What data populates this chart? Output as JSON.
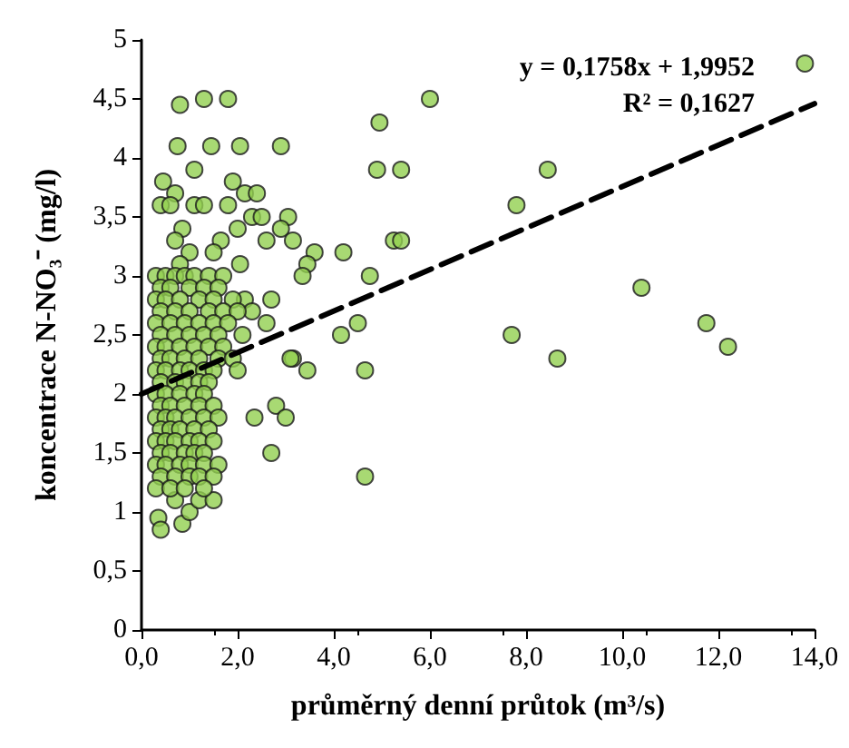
{
  "chart_data": {
    "type": "scatter",
    "xlabel": "průměrný denní průtok (m³/s)",
    "ylabel": "koncentrace N-NO₃⁻ (mg/l)",
    "annotations": [
      "y = 0,1758x + 1,9952",
      "R² = 0,1627"
    ],
    "xlim": [
      0,
      14
    ],
    "xticks": [
      {
        "value": 0,
        "label": "0,0"
      },
      {
        "value": 2,
        "label": "2,0"
      },
      {
        "value": 4,
        "label": "4,0"
      },
      {
        "value": 6,
        "label": "6,0"
      },
      {
        "value": 8,
        "label": "8,0"
      },
      {
        "value": 10,
        "label": "10,0"
      },
      {
        "value": 12,
        "label": "12,0"
      },
      {
        "value": 14,
        "label": "14,0"
      }
    ],
    "ylim": [
      0,
      5
    ],
    "yticks": [
      0,
      {
        "value": 0.5,
        "label": "0,5"
      },
      1,
      {
        "value": 1.5,
        "label": "1,5"
      },
      2,
      {
        "value": 2.5,
        "label": "2,5"
      },
      3,
      {
        "value": 3.5,
        "label": "3,5"
      },
      4,
      {
        "value": 4.5,
        "label": "4,5"
      },
      5
    ],
    "grid": false,
    "series": [
      {
        "color": "#92d050",
        "marker": "circle",
        "x": [
          13.8,
          6.0,
          4.95,
          4.9,
          5.4,
          8.45,
          7.8,
          5.25,
          5.4,
          4.75,
          10.4,
          11.75,
          12.2,
          7.7,
          8.65,
          4.65,
          4.65,
          0.8,
          1.3,
          1.8,
          0.75,
          1.45,
          2.05,
          2.9,
          1.1,
          0.45,
          1.9,
          0.7,
          2.15,
          2.4,
          0.4,
          0.6,
          1.1,
          1.3,
          1.8,
          2.3,
          2.5,
          3.05,
          0.85,
          2.0,
          2.9,
          0.7,
          1.65,
          2.6,
          3.15,
          1.0,
          1.5,
          3.6,
          4.2,
          0.8,
          2.05,
          3.45,
          3.35,
          2.7,
          2.15,
          2.3,
          2.6,
          4.15,
          4.5,
          3.15,
          3.1,
          3.45,
          2.8,
          3.0,
          2.35,
          2.7,
          0.35,
          0.4,
          0.85,
          1.0,
          0.7,
          1.2,
          1.5,
          0.3,
          0.5,
          0.7,
          0.9,
          1.1,
          1.4,
          1.7,
          0.4,
          0.6,
          1.0,
          1.3,
          1.6,
          0.3,
          0.5,
          0.8,
          1.2,
          1.5,
          1.9,
          0.4,
          0.7,
          1.0,
          1.4,
          1.7,
          2.0,
          0.3,
          0.6,
          0.9,
          1.2,
          1.5,
          1.8,
          0.4,
          0.7,
          1.0,
          1.3,
          1.6,
          2.1,
          0.3,
          0.5,
          0.8,
          1.1,
          1.4,
          1.7,
          0.4,
          0.6,
          0.9,
          1.2,
          1.6,
          1.9,
          0.3,
          0.5,
          0.8,
          1.0,
          1.3,
          1.5,
          2.0,
          0.4,
          0.7,
          0.9,
          1.2,
          1.4,
          0.3,
          0.5,
          0.8,
          1.1,
          1.3,
          0.4,
          0.6,
          0.9,
          1.2,
          1.5,
          0.3,
          0.5,
          0.7,
          1.0,
          1.3,
          1.6,
          0.4,
          0.6,
          0.8,
          1.1,
          1.4,
          0.3,
          0.5,
          0.7,
          1.0,
          1.2,
          1.5,
          0.4,
          0.6,
          0.9,
          1.1,
          1.3,
          0.3,
          0.5,
          0.8,
          1.0,
          1.3,
          1.6,
          0.4,
          0.7,
          1.0,
          1.2,
          1.5,
          0.3,
          0.6,
          0.9,
          1.3
        ],
        "values": [
          4.8,
          4.5,
          4.3,
          3.9,
          3.9,
          3.9,
          3.6,
          3.3,
          3.3,
          3.0,
          2.9,
          2.6,
          2.4,
          2.5,
          2.3,
          2.2,
          1.3,
          4.45,
          4.5,
          4.5,
          4.1,
          4.1,
          4.1,
          4.1,
          3.9,
          3.8,
          3.8,
          3.7,
          3.7,
          3.7,
          3.6,
          3.6,
          3.6,
          3.6,
          3.6,
          3.5,
          3.5,
          3.5,
          3.4,
          3.4,
          3.4,
          3.3,
          3.3,
          3.3,
          3.3,
          3.2,
          3.2,
          3.2,
          3.2,
          3.1,
          3.1,
          3.1,
          3.0,
          2.8,
          2.8,
          2.7,
          2.6,
          2.5,
          2.6,
          2.3,
          2.3,
          2.2,
          1.9,
          1.8,
          1.8,
          1.5,
          0.95,
          0.85,
          0.9,
          1.0,
          1.1,
          1.1,
          1.1,
          3.0,
          3.0,
          3.0,
          3.0,
          3.0,
          3.0,
          3.0,
          2.9,
          2.9,
          2.9,
          2.9,
          2.9,
          2.8,
          2.8,
          2.8,
          2.8,
          2.8,
          2.8,
          2.7,
          2.7,
          2.7,
          2.7,
          2.7,
          2.7,
          2.6,
          2.6,
          2.6,
          2.6,
          2.6,
          2.6,
          2.5,
          2.5,
          2.5,
          2.5,
          2.5,
          2.5,
          2.4,
          2.4,
          2.4,
          2.4,
          2.4,
          2.4,
          2.3,
          2.3,
          2.3,
          2.3,
          2.3,
          2.3,
          2.2,
          2.2,
          2.2,
          2.2,
          2.2,
          2.2,
          2.2,
          2.1,
          2.1,
          2.1,
          2.1,
          2.1,
          2.0,
          2.0,
          2.0,
          2.0,
          2.0,
          1.9,
          1.9,
          1.9,
          1.9,
          1.9,
          1.8,
          1.8,
          1.8,
          1.8,
          1.8,
          1.8,
          1.7,
          1.7,
          1.7,
          1.7,
          1.7,
          1.6,
          1.6,
          1.6,
          1.6,
          1.6,
          1.6,
          1.5,
          1.5,
          1.5,
          1.5,
          1.5,
          1.4,
          1.4,
          1.4,
          1.4,
          1.4,
          1.4,
          1.3,
          1.3,
          1.3,
          1.3,
          1.3,
          1.2,
          1.2,
          1.2,
          1.2
        ]
      },
      {
        "type": "line",
        "color": "#000000",
        "line_style": "dashed",
        "marker": "none",
        "x": [
          0,
          14
        ],
        "values": [
          2.0,
          4.46
        ]
      }
    ]
  }
}
